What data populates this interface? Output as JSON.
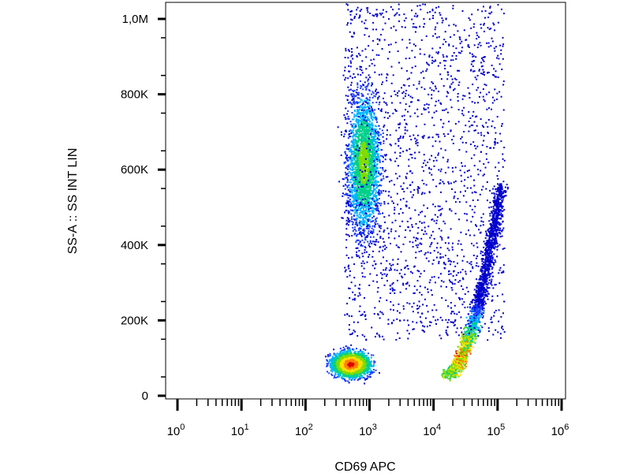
{
  "chart_data": {
    "type": "scatter",
    "style": "flow-cytometry-density-dot-plot",
    "xlabel": "CD69 APC",
    "ylabel": "SS-A :: SS INT LIN",
    "x_scale": "log",
    "y_scale": "linear",
    "xlim": [
      1,
      1000000
    ],
    "ylim": [
      0,
      1050000
    ],
    "grid": false,
    "x_ticks": [
      {
        "base": "10",
        "exp": "0",
        "value": 1
      },
      {
        "base": "10",
        "exp": "1",
        "value": 10
      },
      {
        "base": "10",
        "exp": "2",
        "value": 100
      },
      {
        "base": "10",
        "exp": "3",
        "value": 1000
      },
      {
        "base": "10",
        "exp": "4",
        "value": 10000
      },
      {
        "base": "10",
        "exp": "5",
        "value": 100000
      },
      {
        "base": "10",
        "exp": "6",
        "value": 1000000
      }
    ],
    "y_ticks": [
      {
        "label": "0",
        "value": 0
      },
      {
        "label": "200K",
        "value": 200000
      },
      {
        "label": "400K",
        "value": 400000
      },
      {
        "label": "600K",
        "value": 600000
      },
      {
        "label": "800K",
        "value": 800000
      },
      {
        "label": "1,0M",
        "value": 1000000
      }
    ],
    "density_colors": [
      "#0000cc",
      "#1a3cff",
      "#00b4ff",
      "#00d08a",
      "#7fdc00",
      "#ffe000",
      "#ff8000",
      "#e00000"
    ],
    "populations": [
      {
        "x_log_center": 2.7,
        "y_center": 85000,
        "x_log_spread": 0.22,
        "y_spread": 25000,
        "points": 2600
      },
      {
        "x_log_center": 2.9,
        "y_center": 620000,
        "x_log_spread": 0.18,
        "y_spread": 130000,
        "points": 2600
      },
      {
        "x_log_center_range": [
          4.2,
          5.1
        ],
        "y_range": [
          60000,
          560000
        ],
        "shape": "curved-tail",
        "points": 2200
      },
      {
        "x_log_range": [
          2.3,
          5.0
        ],
        "y_range": [
          150000,
          1050000
        ],
        "shape": "sparse-background",
        "points": 1800
      }
    ]
  }
}
